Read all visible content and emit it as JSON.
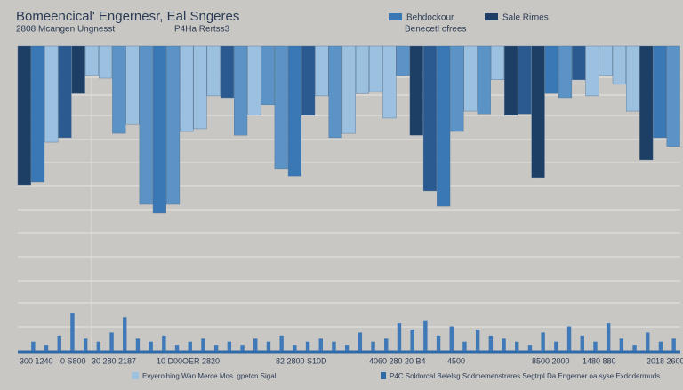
{
  "chart_data": [
    {
      "type": "bar",
      "title": "Bomeencical' Engernesr, Eal Sngeres",
      "subtitle": [
        "2808 Mcangen Ungnesst",
        "P4Ha Rertss3"
      ],
      "legend": [
        {
          "label": "Behdockour",
          "color": "#3a78b5"
        },
        {
          "label": "Sale Rirnes",
          "color": "#1d3f66"
        }
      ],
      "legend_note": "Benecetl ofrees",
      "x_labels": [
        "300 1240",
        "0 S800",
        "30 280 2187",
        "10 D00OER 2820",
        "82 2800 S10D",
        "4060 280 20 B4",
        "4500",
        "8500 2000",
        "1480 880",
        "2018 2600"
      ],
      "notes": [
        "Evyeroihing Wan Merce Mos. gpetcn Sigal",
        "P4C Soldorcal Belelsg Sodmemenstrares Segtrpl Da Engerner oa syse Exdoderrnuds"
      ],
      "inverted": true,
      "ylim": [
        0,
        100
      ],
      "values": [
        45.5,
        44.6,
        31.5,
        30,
        15.5,
        9.6,
        10.5,
        28.6,
        25.7,
        51.9,
        54.8,
        51.9,
        28,
        27.1,
        16.3,
        16.9,
        29.2,
        22.7,
        19.2,
        40.2,
        42.6,
        22.7,
        16.3,
        30,
        28.6,
        15.5,
        14.9,
        23.6,
        9.6,
        29.2,
        47.5,
        52.5,
        28,
        21.3,
        22.2,
        11,
        22.7,
        22.2,
        43.1,
        15.5,
        16.9,
        11,
        16.3,
        9.6,
        12.5,
        21.3,
        37.3,
        30,
        32.9
      ],
      "colors": [
        "#1d3f66",
        "#3a78b5",
        "#9cc0e0",
        "#2a5a8f",
        "#1d3f66",
        "#9cc0e0",
        "#9cc0e0",
        "#5b93c6",
        "#9cc0e0",
        "#5b93c6",
        "#3a78b5",
        "#5b93c6",
        "#9cc0e0",
        "#9cc0e0",
        "#9cc0e0",
        "#2a5a8f",
        "#5b93c6",
        "#9cc0e0",
        "#5b93c6",
        "#5b93c6",
        "#3a78b5",
        "#2a5a8f",
        "#9cc0e0",
        "#5b93c6",
        "#9cc0e0",
        "#9cc0e0",
        "#9cc0e0",
        "#9cc0e0",
        "#5b93c6",
        "#1d3f66",
        "#2a5a8f",
        "#3a78b5",
        "#5b93c6",
        "#9cc0e0",
        "#5b93c6",
        "#9cc0e0",
        "#1d3f66",
        "#2a5a8f",
        "#1d3f66",
        "#3a78b5",
        "#5b93c6",
        "#2a5a8f",
        "#9cc0e0",
        "#9cc0e0",
        "#9cc0e0",
        "#9cc0e0",
        "#1d3f66",
        "#3a78b5",
        "#5b93c6"
      ]
    },
    {
      "type": "bar",
      "ylim": [
        0,
        100
      ],
      "color": "#3f79b8",
      "values": [
        3,
        2,
        5,
        12.5,
        4,
        3,
        6,
        11,
        4,
        3,
        5,
        2,
        3,
        4,
        2,
        3,
        2,
        4,
        3,
        5,
        2,
        3,
        4,
        3,
        2,
        6,
        3,
        4,
        9,
        7,
        10,
        5,
        8,
        3,
        7,
        5,
        4,
        3,
        2,
        6,
        3,
        8,
        5,
        3,
        9,
        4,
        2,
        6,
        3,
        4
      ]
    }
  ]
}
